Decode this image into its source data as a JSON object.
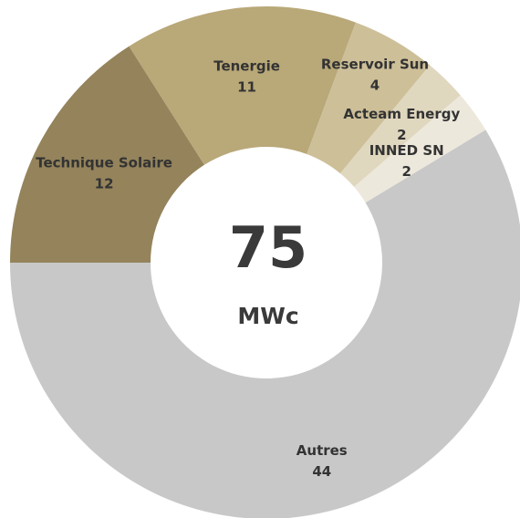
{
  "chart_data": {
    "type": "donut",
    "categories": [
      "Technique Solaire",
      "Tenergie",
      "Reservoir Sun",
      "Acteam Energy",
      "INNED SN",
      "Autres"
    ],
    "values": [
      12,
      11,
      4,
      2,
      2,
      44
    ],
    "colors": [
      "#94835b",
      "#b9a878",
      "#cdbf98",
      "#e0d7bf",
      "#ede8dc",
      "#c8c8c8"
    ],
    "center_value": 75,
    "center_label": "MWc"
  }
}
